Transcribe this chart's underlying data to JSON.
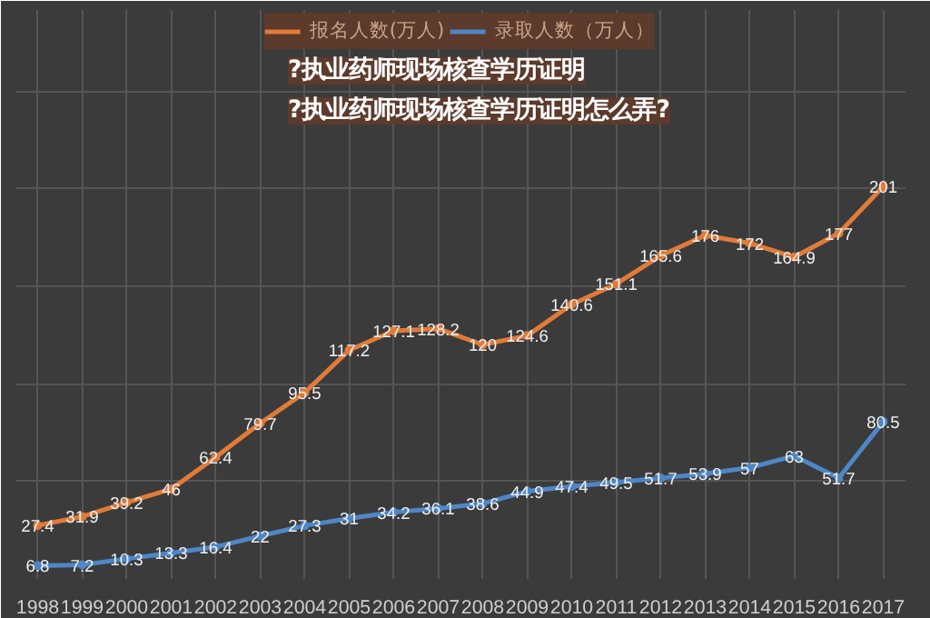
{
  "chart_data": {
    "type": "line",
    "title": "?执业药师现场核查学历证明",
    "subtitle": "?执业药师现场核查学历证明怎么弄?",
    "categories": [
      "1998",
      "1999",
      "2000",
      "2001",
      "2002",
      "2003",
      "2004",
      "2005",
      "2006",
      "2007",
      "2008",
      "2009",
      "2010",
      "2011",
      "2012",
      "2013",
      "2014",
      "2015",
      "2016",
      "2017"
    ],
    "series": [
      {
        "name": "报名人数(万人)",
        "color": "#e07b39",
        "values": [
          27.4,
          31.9,
          39.2,
          46,
          62.4,
          79.7,
          95.5,
          117.2,
          127.1,
          128.2,
          120,
          124.6,
          140.6,
          151.1,
          165.6,
          176,
          172,
          164.9,
          177,
          201
        ]
      },
      {
        "name": "录取人数（万人）",
        "color": "#4f86c6",
        "values": [
          6.8,
          7.2,
          10.3,
          13.3,
          16.4,
          22,
          27.3,
          31,
          34.2,
          36.1,
          38.6,
          44.9,
          47.4,
          49.5,
          51.7,
          53.9,
          57,
          63,
          51.7,
          80.5
        ]
      }
    ],
    "data_labels": true,
    "grid": true,
    "legend": "top",
    "marker": "circle",
    "line_style": "solid"
  }
}
